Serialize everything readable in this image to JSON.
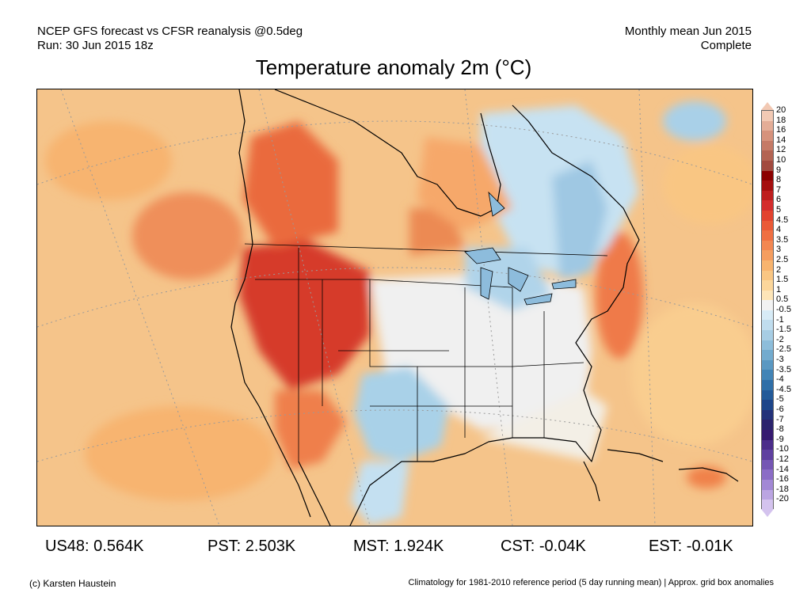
{
  "header": {
    "model_line": "NCEP GFS forecast vs CFSR reanalysis @0.5deg",
    "run_line": "Run: 30 Jun 2015 18z",
    "period_line": "Monthly mean Jun 2015",
    "status_line": "Complete"
  },
  "title": "Temperature anomaly 2m (°C)",
  "stats": [
    {
      "label": "US48: 0.564K"
    },
    {
      "label": "PST: 2.503K"
    },
    {
      "label": "MST: 1.924K"
    },
    {
      "label": "CST: -0.04K"
    },
    {
      "label": "EST: -0.01K"
    }
  ],
  "footer": {
    "credit": "(c) Karsten Haustein",
    "note": "Climatology for 1981-2010 reference period (5 day running mean) | Approx. grid box anomalies"
  },
  "colorbar": {
    "labels": [
      "20",
      "18",
      "16",
      "14",
      "12",
      "10",
      "9",
      "8",
      "7",
      "6",
      "5",
      "4.5",
      "4",
      "3.5",
      "3",
      "2.5",
      "2",
      "1.5",
      "1",
      "0.5",
      "-0.5",
      "-1",
      "-1.5",
      "-2",
      "-2.5",
      "-3",
      "-3.5",
      "-4",
      "-4.5",
      "-5",
      "-6",
      "-7",
      "-8",
      "-9",
      "-10",
      "-12",
      "-14",
      "-16",
      "-18",
      "-20"
    ],
    "colors": [
      "#f2c9b4",
      "#e4ad97",
      "#d6927c",
      "#c57a66",
      "#b36352",
      "#a24a3f",
      "#8b0000",
      "#a50f0f",
      "#be1e1e",
      "#d42d2d",
      "#e2432f",
      "#ea5a37",
      "#ef7043",
      "#f28752",
      "#f59e60",
      "#f7b46f",
      "#f9c683",
      "#fbd69b",
      "#fde5b8",
      "#f2f2f2",
      "#d7ebf6",
      "#c0ddee",
      "#a7cde4",
      "#8dbdda",
      "#73abce",
      "#5a98c2",
      "#4284b6",
      "#2f6fa8",
      "#225a99",
      "#1d458a",
      "#24327a",
      "#2b236d",
      "#361a70",
      "#4b2c8a",
      "#5f40a0",
      "#7556b4",
      "#8b6dc6",
      "#a288d5",
      "#bba5e2",
      "#d4c3ee"
    ],
    "arrow_top_color": "#f2c9b4",
    "arrow_bottom_color": "#d4c3ee"
  }
}
